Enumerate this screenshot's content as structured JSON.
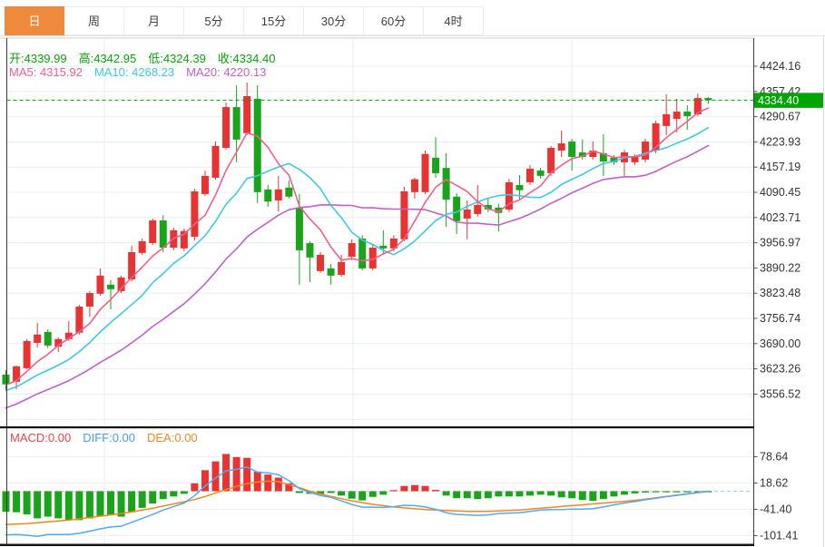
{
  "tabs": {
    "items": [
      {
        "label": "日",
        "name": "tab-day",
        "active": true
      },
      {
        "label": "周",
        "name": "tab-week",
        "active": false
      },
      {
        "label": "月",
        "name": "tab-month",
        "active": false
      },
      {
        "label": "5分",
        "name": "tab-5min",
        "active": false
      },
      {
        "label": "15分",
        "name": "tab-15min",
        "active": false
      },
      {
        "label": "30分",
        "name": "tab-30min",
        "active": false
      },
      {
        "label": "60分",
        "name": "tab-60min",
        "active": false
      },
      {
        "label": "4时",
        "name": "tab-4hour",
        "active": false
      }
    ]
  },
  "quote": {
    "open": "开:4339.99",
    "high": "高:4342.95",
    "low": "低:4324.39",
    "close": "收:4334.40"
  },
  "ma": {
    "ma5": "MA5: 4315.92",
    "ma10": "MA10: 4268.23",
    "ma20": "MA20: 4220.13"
  },
  "macd_header": {
    "macd": "MACD:0.00",
    "diff": "DIFF:0.00",
    "dea": "DEA:0.00"
  },
  "price_label": "4334.40",
  "colors": {
    "up": "#e83333",
    "down": "#1ba31b",
    "ma5": "#f0608d",
    "ma10": "#3fc8e4",
    "ma20": "#bf62c8",
    "diff_line": "#55a9f0",
    "dea_line": "#f5861f",
    "quote_green": "#09a309",
    "price_line": "#00a600",
    "tab_active_bg": "#ef8a3c",
    "grid": "#e9eef5",
    "axis_text": "#333333",
    "macd_label": "#ee4444",
    "diff_label": "#44a0f4",
    "dea_label": "#f08820"
  },
  "chart_data": {
    "type": "candlestick",
    "x_count": 68,
    "panels": [
      {
        "name": "price",
        "ylim": [
          3470,
          4500
        ],
        "grid": true,
        "y_tick_labels": [
          "4424.16",
          "4357.42",
          "4290.67",
          "4223.93",
          "4157.19",
          "4090.45",
          "4023.71",
          "3956.97",
          "3890.22",
          "3823.48",
          "3756.74",
          "3690.00",
          "3623.26",
          "3556.52"
        ],
        "y_ticks": [
          4424.16,
          4357.42,
          4290.67,
          4223.93,
          4157.19,
          4090.45,
          4023.71,
          3956.97,
          3890.22,
          3823.48,
          3756.74,
          3690.0,
          3623.26,
          3556.52
        ],
        "current_price": 4334.4,
        "ohlc_latest": {
          "open": 4339.99,
          "high": 4342.95,
          "low": 4324.39,
          "close": 4334.4
        },
        "ma_latest": {
          "ma5": 4315.92,
          "ma10": 4268.23,
          "ma20": 4220.13
        },
        "candles": [
          [
            3608,
            3620,
            3565,
            3582
          ],
          [
            3589,
            3632,
            3570,
            3630
          ],
          [
            3625,
            3702,
            3622,
            3697
          ],
          [
            3692,
            3745,
            3680,
            3714
          ],
          [
            3721,
            3728,
            3678,
            3685
          ],
          [
            3682,
            3707,
            3668,
            3702
          ],
          [
            3702,
            3750,
            3697,
            3719
          ],
          [
            3719,
            3793,
            3714,
            3788
          ],
          [
            3788,
            3829,
            3761,
            3824
          ],
          [
            3822,
            3889,
            3817,
            3870
          ],
          [
            3846,
            3858,
            3781,
            3834
          ],
          [
            3829,
            3870,
            3824,
            3865
          ],
          [
            3860,
            3949,
            3855,
            3932
          ],
          [
            3930,
            3968,
            3925,
            3961
          ],
          [
            3956,
            4021,
            3951,
            4016
          ],
          [
            4016,
            4030,
            3932,
            3944
          ],
          [
            3944,
            3997,
            3937,
            3990
          ],
          [
            3942,
            3995,
            3935,
            3988
          ],
          [
            3973,
            4100,
            3963,
            4093
          ],
          [
            4086,
            4148,
            4081,
            4134
          ],
          [
            4129,
            4225,
            4124,
            4213
          ],
          [
            4208,
            4328,
            4203,
            4316
          ],
          [
            4316,
            4374,
            4170,
            4230
          ],
          [
            4247,
            4381,
            4242,
            4345
          ],
          [
            4338,
            4374,
            4062,
            4091
          ],
          [
            4098,
            4110,
            4052,
            4066
          ],
          [
            4069,
            4134,
            4040,
            4098
          ],
          [
            4103,
            4122,
            4074,
            4079
          ],
          [
            4050,
            4086,
            3846,
            3937
          ],
          [
            3956,
            3961,
            3853,
            3918
          ],
          [
            3882,
            3932,
            3877,
            3925
          ],
          [
            3889,
            3901,
            3846,
            3870
          ],
          [
            3872,
            3925,
            3867,
            3906
          ],
          [
            3920,
            3966,
            3911,
            3956
          ],
          [
            3968,
            3977,
            3884,
            3889
          ],
          [
            3889,
            3953,
            3884,
            3944
          ],
          [
            3949,
            3990,
            3925,
            3942
          ],
          [
            3942,
            3977,
            3934,
            3968
          ],
          [
            3966,
            4105,
            3961,
            4093
          ],
          [
            4091,
            4129,
            4074,
            4125
          ],
          [
            4091,
            4201,
            4086,
            4192
          ],
          [
            4182,
            4236,
            4129,
            4141
          ],
          [
            4155,
            4194,
            3999,
            4071
          ],
          [
            4079,
            4088,
            3980,
            4014
          ],
          [
            4021,
            4069,
            3966,
            4045
          ],
          [
            4033,
            4110,
            4026,
            4057
          ],
          [
            4057,
            4076,
            4038,
            4045
          ],
          [
            4050,
            4060,
            3987,
            4036
          ],
          [
            4045,
            4126,
            4038,
            4117
          ],
          [
            4110,
            4136,
            4072,
            4096
          ],
          [
            4117,
            4162,
            4110,
            4153
          ],
          [
            4148,
            4155,
            4127,
            4134
          ],
          [
            4141,
            4213,
            4134,
            4208
          ],
          [
            4201,
            4254,
            4184,
            4220
          ],
          [
            4225,
            4232,
            4148,
            4184
          ],
          [
            4196,
            4230,
            4177,
            4184
          ],
          [
            4184,
            4225,
            4177,
            4201
          ],
          [
            4194,
            4244,
            4134,
            4172
          ],
          [
            4182,
            4189,
            4163,
            4170
          ],
          [
            4170,
            4203,
            4134,
            4196
          ],
          [
            4170,
            4191,
            4163,
            4184
          ],
          [
            4177,
            4232,
            4170,
            4225
          ],
          [
            4201,
            4280,
            4194,
            4273
          ],
          [
            4266,
            4350,
            4242,
            4297
          ],
          [
            4285,
            4338,
            4249,
            4304
          ],
          [
            4304,
            4321,
            4256,
            4292
          ],
          [
            4297,
            4352,
            4292,
            4340
          ],
          [
            4339.99,
            4342.95,
            4324.39,
            4334.4
          ]
        ]
      },
      {
        "name": "macd",
        "ylim": [
          -125,
          140
        ],
        "y_tick_labels": [
          "78.64",
          "18.62",
          "-41.40",
          "-101.41"
        ],
        "y_ticks": [
          78.64,
          18.62,
          -41.4,
          -101.41
        ],
        "latest": {
          "macd": 0.0,
          "diff": 0.0,
          "dea": 0.0
        },
        "histogram": [
          -47,
          -48,
          -53,
          -62,
          -58,
          -62,
          -66,
          -66,
          -62,
          -58,
          -55,
          -58,
          -48,
          -38,
          -28,
          -18,
          -12,
          -6,
          18,
          48,
          68,
          85,
          78,
          76,
          45,
          38,
          31,
          18,
          -4,
          -6,
          -7,
          -4,
          -10,
          -17,
          -21,
          -13,
          -8,
          1,
          12,
          14,
          12,
          3,
          -10,
          -16,
          -16,
          -18,
          -16,
          -12,
          -12,
          -12,
          -10,
          -8,
          -10,
          -14,
          -16,
          -20,
          -22,
          -18,
          -12,
          -8,
          -5,
          -3,
          -2,
          -1,
          -1,
          -0.5,
          -0.5,
          -0.5
        ],
        "dea": [
          -76,
          -75,
          -74,
          -72,
          -70,
          -68,
          -66,
          -63,
          -60,
          -57,
          -54,
          -51,
          -47,
          -43,
          -39,
          -34,
          -29,
          -24,
          -19,
          -12,
          -4,
          4,
          11,
          17,
          21,
          23,
          22,
          15,
          8,
          0,
          -6,
          -12,
          -17,
          -22,
          -26,
          -30,
          -33,
          -36,
          -38,
          -40,
          -42,
          -43,
          -44,
          -45,
          -46,
          -46,
          -46,
          -45,
          -44,
          -43,
          -41,
          -39,
          -37,
          -35,
          -33,
          -31,
          -29,
          -27,
          -25,
          -23,
          -21,
          -18,
          -15,
          -12,
          -9,
          -6,
          -3,
          0
        ]
      }
    ]
  }
}
